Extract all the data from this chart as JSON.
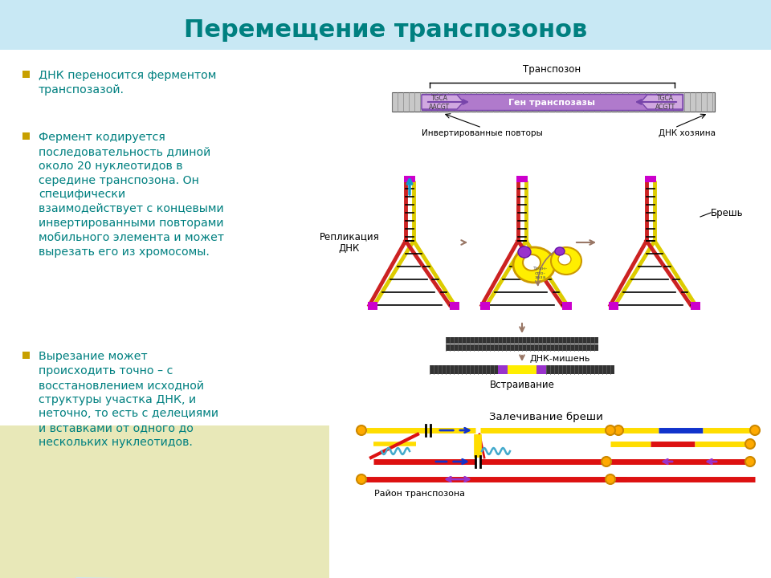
{
  "title": "Перемещение транспозонов",
  "title_color": "#008080",
  "title_fontsize": 22,
  "bg_top_color": "#c8e8f4",
  "text_color": "#008080",
  "bullet_items": [
    "ДНК переносится ферментом\nтранспозазой.",
    "Фермент кодируется\nпоследовательность длиной\nоколо 20 нуклеотидов в\nсередине транспозона. Он\nспецифически\nвзаимодействует с концевыми\nинвертированными повторами\nмобильного элемента и может\nвырезать его из хромосомы.",
    "Вырезание может\nпроисходить точно – с\nвосстановлением исходной\nструктуры участка ДНК, и\nнеточно, то есть с делециями\nи вставками от одного до\nнескольких нуклеотидов."
  ],
  "transposon_label": "Транспозон",
  "inverted_repeats_label": "Инвертированные повторы",
  "host_dna_label": "ДНК хозяина",
  "gene_label": "Ген транспозазы",
  "replication_label": "Репликация\nДНК",
  "breach_label": "Брешь",
  "target_dna_label": "ДНК-мишень",
  "insertion_label": "Встраивание",
  "healing_label": "Залечивание бреши",
  "transposon_region_label": "Район транспозона"
}
